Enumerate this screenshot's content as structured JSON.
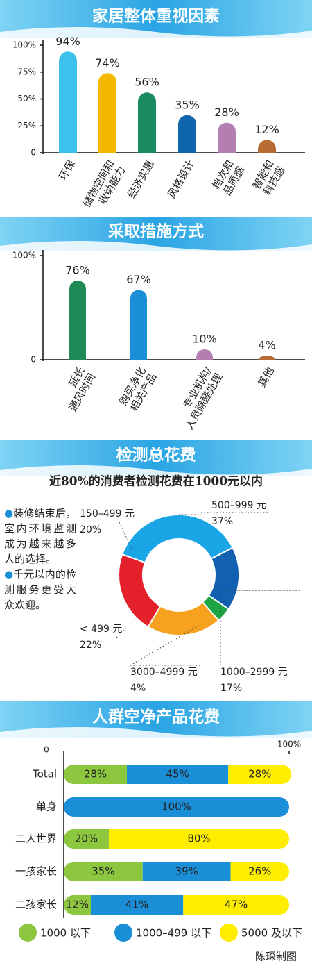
{
  "chart_data": [
    {
      "type": "bar",
      "title": "家居整体重视因素",
      "categories": [
        "环保",
        "储物空间和\n收纳能力",
        "经济实惠",
        "风格设计",
        "档次和\n品质感",
        "智能和\n科技感"
      ],
      "values": [
        94,
        74,
        56,
        35,
        28,
        12
      ],
      "value_labels": [
        "94%",
        "74%",
        "56%",
        "35%",
        "28%",
        "12%"
      ],
      "colors": [
        "#3cc0ec",
        "#f5b800",
        "#1a8a60",
        "#1066ac",
        "#b27fb0",
        "#b86b33"
      ],
      "ylim": [
        0,
        100
      ],
      "yticks": [
        0,
        {
          "value": 25,
          "label": "25%"
        },
        {
          "value": 50,
          "label": "50%"
        },
        {
          "value": 75,
          "label": "75%"
        },
        {
          "value": 100,
          "label": "100%"
        }
      ]
    },
    {
      "type": "bar",
      "title": "采取措施方式",
      "categories": [
        "延长\n通风时间",
        "购买净化\n相关产品",
        "专业机构/\n人员除醛处理",
        "其他"
      ],
      "values": [
        76,
        67,
        10,
        4
      ],
      "value_labels": [
        "76%",
        "67%",
        "10%",
        "4%"
      ],
      "colors": [
        "#1f8a55",
        "#1a8fd8",
        "#b27fb0",
        "#b86b33"
      ],
      "ylim": [
        0,
        100
      ],
      "yticks": [
        0,
        {
          "value": 100,
          "label": "100%"
        }
      ]
    },
    {
      "type": "donut",
      "title": "检测总花费",
      "subtitle": "近80%的消费者检测花费在1000元以内",
      "notes": [
        "装修结束后，室内环境监测成为越来越多人的选择。",
        "千元以内的检测服务更受大众欢迎。"
      ],
      "categories": [
        "500–999 元",
        "1000–2999 元",
        "3000–4999 元",
        "150–499 元",
        "< 499 元"
      ],
      "values": [
        37,
        17,
        4,
        20,
        22
      ],
      "value_labels": [
        "37%",
        "17%",
        "4%",
        "20%",
        "22%"
      ],
      "colors": [
        "#1aa6e6",
        "#1261b0",
        "#1da545",
        "#f6a21e",
        "#e4202b"
      ]
    },
    {
      "type": "stackedbar",
      "title": "人群空净产品花费",
      "categories": [
        "Total",
        "单身",
        "二人世界",
        "一孩家长",
        "二孩家长"
      ],
      "series": [
        {
          "name": "1000 以下",
          "color": "#8dc63f",
          "values": [
            28,
            null,
            20,
            35,
            12
          ],
          "value_labels": [
            "28%",
            null,
            "20%",
            "35%",
            "12%"
          ]
        },
        {
          "name": "1000–499 以下",
          "color": "#1a8fd8",
          "values": [
            45,
            100,
            null,
            39,
            41
          ],
          "value_labels": [
            "45%",
            "100%",
            null,
            "39%",
            "41%"
          ]
        },
        {
          "name": "5000 及以下",
          "color": "#ffee00",
          "values": [
            28,
            null,
            80,
            26,
            47
          ],
          "value_labels": [
            "28%",
            null,
            "80%",
            "26%",
            "47%"
          ]
        }
      ],
      "xlim": [
        0,
        100
      ],
      "xticks": [
        0,
        {
          "value": 100,
          "label": "100%"
        }
      ]
    }
  ],
  "credit": "陈琛制图"
}
